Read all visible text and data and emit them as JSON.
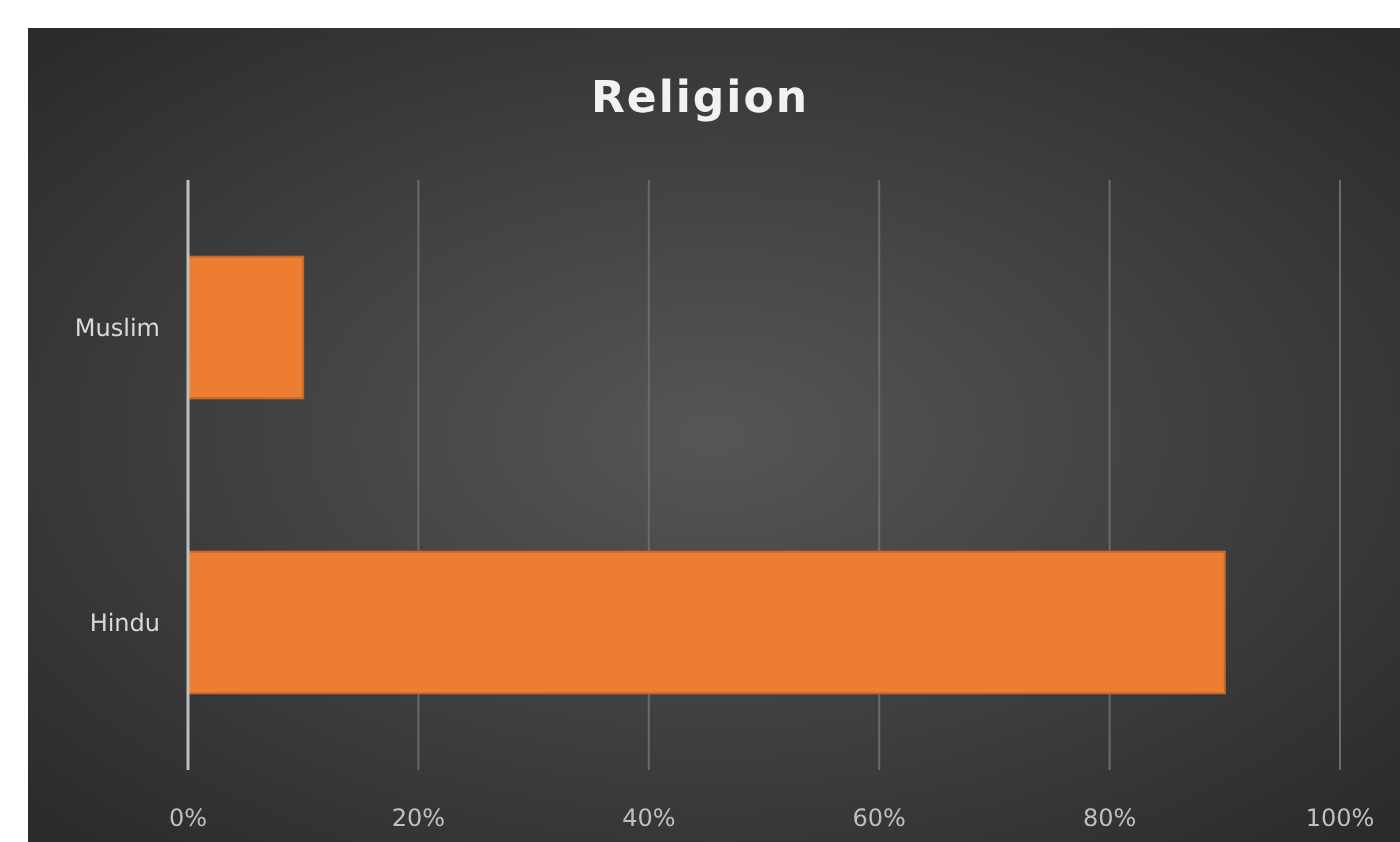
{
  "chart_data": {
    "type": "bar",
    "title": "Religion",
    "orientation": "horizontal",
    "categories": [
      "Muslim",
      "Hindu"
    ],
    "values": [
      10,
      90
    ],
    "color": "#ed7d31",
    "xlim": [
      0,
      100
    ],
    "xticks": [
      {
        "value": 0,
        "label": "0%"
      },
      {
        "value": 20,
        "label": "20%"
      },
      {
        "value": 40,
        "label": "40%"
      },
      {
        "value": 60,
        "label": "60%"
      },
      {
        "value": 80,
        "label": "80%"
      },
      {
        "value": 100,
        "label": "100%"
      }
    ],
    "grid": "x"
  }
}
